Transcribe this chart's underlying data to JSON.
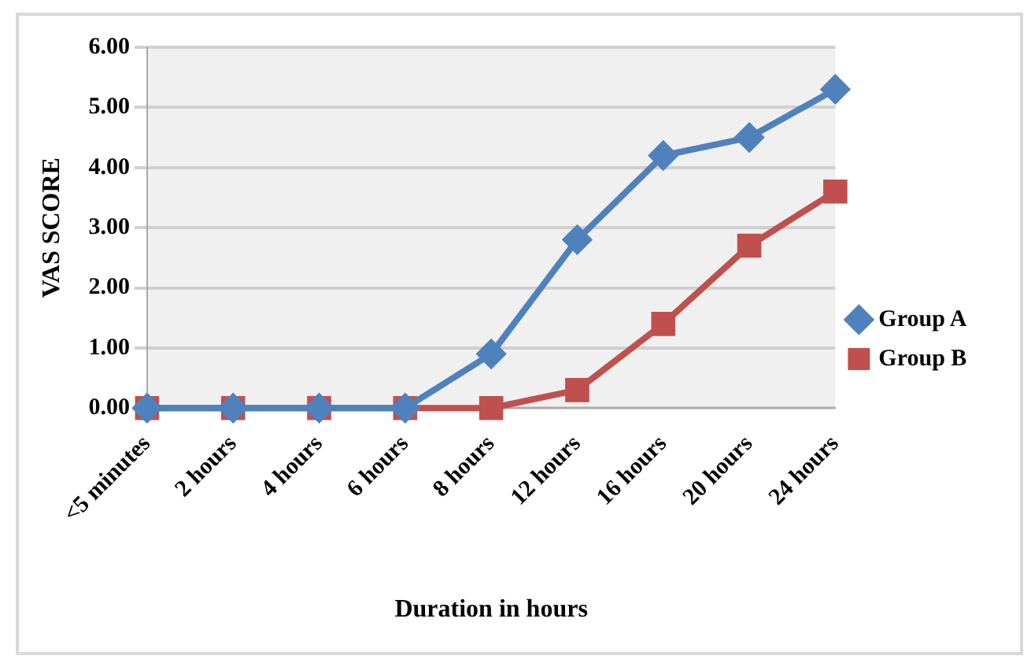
{
  "chart_data": {
    "type": "line",
    "xlabel": "Duration in hours",
    "ylabel": "VAS SCORE",
    "categories": [
      "<5 minutes",
      "2 hours",
      "4 hours",
      "6 hours",
      "8 hours",
      "12 hours",
      "16 hours",
      "20 hours",
      "24 hours"
    ],
    "series": [
      {
        "name": "Group A",
        "color": "#4f81bd",
        "marker": "diamond",
        "values": [
          0,
          0,
          0,
          0,
          0.9,
          2.8,
          4.2,
          4.5,
          5.3
        ]
      },
      {
        "name": "Group B",
        "color": "#c0504d",
        "marker": "square",
        "values": [
          0,
          0,
          0,
          0,
          0,
          0.3,
          1.4,
          2.7,
          3.6
        ]
      }
    ],
    "ylim": [
      0,
      6
    ],
    "yticks": [
      {
        "value": 0,
        "label": "0.00"
      },
      {
        "value": 1,
        "label": "1.00"
      },
      {
        "value": 2,
        "label": "2.00"
      },
      {
        "value": 3,
        "label": "3.00"
      },
      {
        "value": 4,
        "label": "4.00"
      },
      {
        "value": 5,
        "label": "5.00"
      },
      {
        "value": 6,
        "label": "6.00"
      }
    ],
    "grid": "y",
    "legend": "right"
  }
}
